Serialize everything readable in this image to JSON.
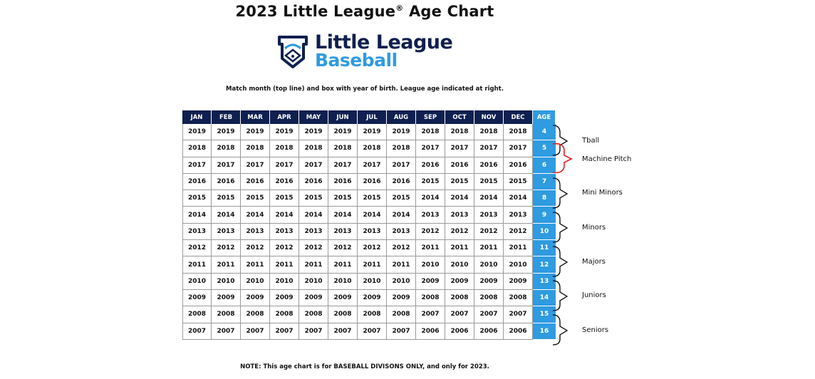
{
  "title": {
    "main": "2023 Little League",
    "mark": "®",
    "suffix": "Age Chart"
  },
  "logo": {
    "line1": "Little League",
    "line2": "Baseball",
    "navy": "#0f1f4f",
    "blue": "#2f9be0"
  },
  "instruction": "Match month (top line) and box with year of birth. League age indicated at right.",
  "table": {
    "months": [
      "JAN",
      "FEB",
      "MAR",
      "APR",
      "MAY",
      "JUN",
      "JUL",
      "AUG",
      "SEP",
      "OCT",
      "NOV",
      "DEC"
    ],
    "age_header": "AGE",
    "rows": [
      {
        "years": [
          "2019",
          "2019",
          "2019",
          "2019",
          "2019",
          "2019",
          "2019",
          "2019",
          "2018",
          "2018",
          "2018",
          "2018"
        ],
        "age": "4"
      },
      {
        "years": [
          "2018",
          "2018",
          "2018",
          "2018",
          "2018",
          "2018",
          "2018",
          "2018",
          "2017",
          "2017",
          "2017",
          "2017"
        ],
        "age": "5"
      },
      {
        "years": [
          "2017",
          "2017",
          "2017",
          "2017",
          "2017",
          "2017",
          "2017",
          "2017",
          "2016",
          "2016",
          "2016",
          "2016"
        ],
        "age": "6"
      },
      {
        "years": [
          "2016",
          "2016",
          "2016",
          "2016",
          "2016",
          "2016",
          "2016",
          "2016",
          "2015",
          "2015",
          "2015",
          "2015"
        ],
        "age": "7"
      },
      {
        "years": [
          "2015",
          "2015",
          "2015",
          "2015",
          "2015",
          "2015",
          "2015",
          "2015",
          "2014",
          "2014",
          "2014",
          "2014"
        ],
        "age": "8"
      },
      {
        "years": [
          "2014",
          "2014",
          "2014",
          "2014",
          "2014",
          "2014",
          "2014",
          "2014",
          "2013",
          "2013",
          "2013",
          "2013"
        ],
        "age": "9"
      },
      {
        "years": [
          "2013",
          "2013",
          "2013",
          "2013",
          "2013",
          "2013",
          "2013",
          "2013",
          "2012",
          "2012",
          "2012",
          "2012"
        ],
        "age": "10"
      },
      {
        "years": [
          "2012",
          "2012",
          "2012",
          "2012",
          "2012",
          "2012",
          "2012",
          "2012",
          "2011",
          "2011",
          "2011",
          "2011"
        ],
        "age": "11"
      },
      {
        "years": [
          "2011",
          "2011",
          "2011",
          "2011",
          "2011",
          "2011",
          "2011",
          "2011",
          "2010",
          "2010",
          "2010",
          "2010"
        ],
        "age": "12"
      },
      {
        "years": [
          "2010",
          "2010",
          "2010",
          "2010",
          "2010",
          "2010",
          "2010",
          "2010",
          "2009",
          "2009",
          "2009",
          "2009"
        ],
        "age": "13"
      },
      {
        "years": [
          "2009",
          "2009",
          "2009",
          "2009",
          "2009",
          "2009",
          "2009",
          "2009",
          "2008",
          "2008",
          "2008",
          "2008"
        ],
        "age": "14"
      },
      {
        "years": [
          "2008",
          "2008",
          "2008",
          "2008",
          "2008",
          "2008",
          "2008",
          "2008",
          "2007",
          "2007",
          "2007",
          "2007"
        ],
        "age": "15"
      },
      {
        "years": [
          "2007",
          "2007",
          "2007",
          "2007",
          "2007",
          "2007",
          "2007",
          "2007",
          "2006",
          "2006",
          "2006",
          "2006"
        ],
        "age": "16"
      }
    ]
  },
  "divisions": [
    "Tball",
    "Machine Pitch",
    "Mini Minors",
    "Minors",
    "Majors",
    "Juniors",
    "Seniors"
  ],
  "bracket_colors": {
    "default": "#000000",
    "machine_pitch": "#e02020"
  },
  "note": "NOTE: This age chart is for BASEBALL DIVISONS ONLY, and only for 2023."
}
